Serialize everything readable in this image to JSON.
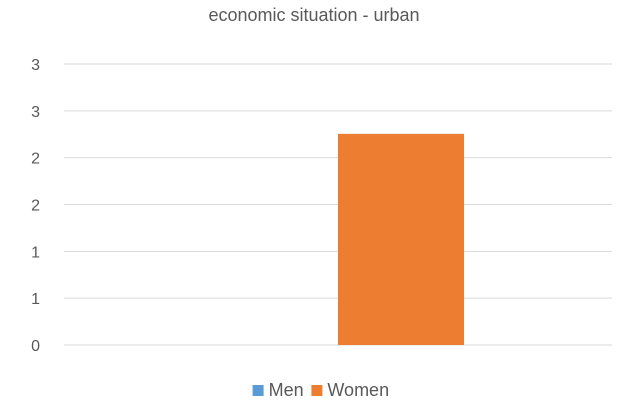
{
  "chart_data": {
    "type": "bar",
    "title": "economic situation - urban",
    "xlabel": "",
    "ylabel": "",
    "categories": [
      ""
    ],
    "y_tick_labels": [
      "0",
      "1",
      "1",
      "2",
      "2",
      "3",
      "3"
    ],
    "ylim": [
      0,
      3.5
    ],
    "grid": true,
    "legend_position": "bottom",
    "series": [
      {
        "name": "Men",
        "values": [
          0
        ],
        "color": "#5b9bd5"
      },
      {
        "name": "Women",
        "values": [
          2.63
        ],
        "color": "#ed7d31"
      }
    ]
  },
  "colors": {
    "grid": "#d9d9d9",
    "text": "#595959",
    "title": "#595959"
  }
}
